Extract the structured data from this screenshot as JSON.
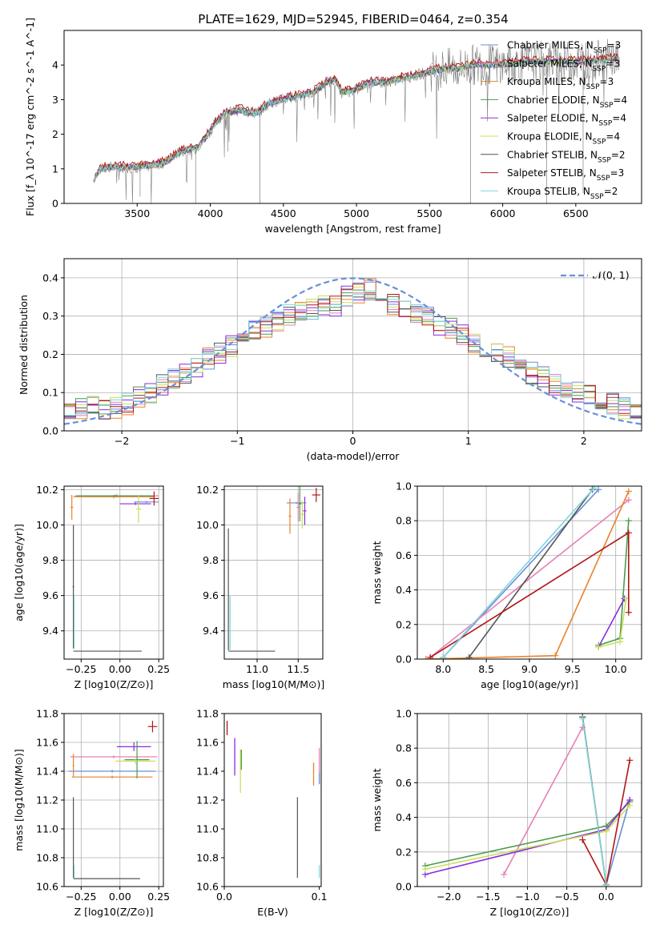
{
  "figure_title": "PLATE=1629, MJD=52945, FIBERID=0464, z=0.354",
  "colors": {
    "chabrier_miles": "#6a8fd8",
    "salpeter_miles": "#e87fb5",
    "kroupa_miles": "#e8822c",
    "chabrier_elodie": "#4d9a4d",
    "salpeter_elodie": "#8a2be2",
    "kroupa_elodie": "#c8e05a",
    "chabrier_stelib": "#555555",
    "salpeter_stelib": "#b01818",
    "kroupa_stelib": "#7fd6dc",
    "normal_curve": "#6a8fd8",
    "spectrum_grey": "#808080"
  },
  "chart_data": [
    {
      "id": "spectrum",
      "type": "line",
      "xlabel": "wavelength [Angstrom, rest frame]",
      "ylabel": "Flux [f_λ 10^-17 erg cm^-2 s^-1 A^-1]",
      "xlim": [
        3000,
        6950
      ],
      "ylim": [
        0,
        5
      ],
      "xticks": [
        "3500",
        "4000",
        "4500",
        "5000",
        "5500",
        "6000",
        "6500"
      ],
      "yticks": [
        "0",
        "1",
        "2",
        "3",
        "4"
      ],
      "grid": false,
      "legend_position": "right",
      "legend": [
        "Chabrier MILES, N_SSP=3",
        "Salpeter MILES, N_SSP=3",
        "Kroupa MILES, N_SSP=3",
        "Chabrier ELODIE, N_SSP=4",
        "Salpeter ELODIE, N_SSP=4",
        "Kroupa ELODIE, N_SSP=4",
        "Chabrier STELIB, N_SSP=2",
        "Salpeter STELIB, N_SSP=3",
        "Kroupa STELIB, N_SSP=2"
      ],
      "continuum": [
        [
          3200,
          0.7
        ],
        [
          3250,
          1.0
        ],
        [
          3300,
          1.05
        ],
        [
          3400,
          1.05
        ],
        [
          3500,
          1.05
        ],
        [
          3600,
          1.1
        ],
        [
          3700,
          1.2
        ],
        [
          3800,
          1.5
        ],
        [
          3900,
          1.6
        ],
        [
          3950,
          1.8
        ],
        [
          4000,
          2.1
        ],
        [
          4050,
          2.4
        ],
        [
          4100,
          2.6
        ],
        [
          4200,
          2.7
        ],
        [
          4300,
          2.6
        ],
        [
          4350,
          2.7
        ],
        [
          4400,
          2.9
        ],
        [
          4500,
          3.0
        ],
        [
          4600,
          3.1
        ],
        [
          4700,
          3.2
        ],
        [
          4800,
          3.5
        ],
        [
          4850,
          3.6
        ],
        [
          4900,
          3.2
        ],
        [
          5000,
          3.3
        ],
        [
          5100,
          3.5
        ],
        [
          5200,
          3.5
        ],
        [
          5300,
          3.6
        ],
        [
          5400,
          3.7
        ],
        [
          5500,
          3.8
        ],
        [
          5600,
          3.9
        ],
        [
          5700,
          3.9
        ],
        [
          5800,
          4.0
        ],
        [
          5900,
          4.0
        ],
        [
          6000,
          4.0
        ],
        [
          6200,
          4.1
        ],
        [
          6400,
          4.1
        ],
        [
          6600,
          4.1
        ],
        [
          6800,
          4.2
        ]
      ]
    },
    {
      "id": "residuals",
      "type": "line",
      "xlabel": "(data-model)/error",
      "ylabel": "Normed distribution",
      "xlim": [
        -2.5,
        2.5
      ],
      "ylim": [
        0,
        0.45
      ],
      "xticks": [
        "−2",
        "−1",
        "0",
        "1",
        "2"
      ],
      "yticks": [
        "0.0",
        "0.1",
        "0.2",
        "0.3",
        "0.4"
      ],
      "grid": true,
      "legend_position": "top-right",
      "legend": [
        "𝒩(0, 1)"
      ],
      "bin_centers": [
        -2.45,
        -2.35,
        -2.25,
        -2.15,
        -2.05,
        -1.95,
        -1.85,
        -1.75,
        -1.65,
        -1.55,
        -1.45,
        -1.35,
        -1.25,
        -1.15,
        -1.05,
        -0.95,
        -0.85,
        -0.75,
        -0.65,
        -0.55,
        -0.45,
        -0.35,
        -0.25,
        -0.15,
        -0.05,
        0.05,
        0.15,
        0.25,
        0.35,
        0.45,
        0.55,
        0.65,
        0.75,
        0.85,
        0.95,
        1.05,
        1.15,
        1.25,
        1.35,
        1.45,
        1.55,
        1.65,
        1.75,
        1.85,
        1.95,
        2.05,
        2.15,
        2.25,
        2.35,
        2.45
      ],
      "histogram_mean": [
        0.05,
        0.06,
        0.07,
        0.06,
        0.06,
        0.07,
        0.09,
        0.1,
        0.12,
        0.14,
        0.15,
        0.17,
        0.19,
        0.2,
        0.22,
        0.25,
        0.26,
        0.27,
        0.29,
        0.3,
        0.31,
        0.32,
        0.33,
        0.33,
        0.35,
        0.36,
        0.37,
        0.34,
        0.33,
        0.31,
        0.31,
        0.3,
        0.28,
        0.27,
        0.25,
        0.23,
        0.21,
        0.2,
        0.19,
        0.17,
        0.15,
        0.14,
        0.12,
        0.11,
        0.1,
        0.09,
        0.08,
        0.07,
        0.06,
        0.05
      ],
      "normal_curve": {
        "mean": 0,
        "sigma": 1
      }
    },
    {
      "id": "age_vs_Z",
      "type": "scatter",
      "xlabel": "Z [log10(Z/Z⊙)]",
      "ylabel": "age [log10(age/yr)]",
      "xlim": [
        -0.36,
        0.28
      ],
      "ylim": [
        9.24,
        10.22
      ],
      "xticks": [
        "−0.25",
        "0.00",
        "0.25"
      ],
      "yticks": [
        "9.4",
        "9.6",
        "9.8",
        "10.0",
        "10.2"
      ],
      "grid": true
    },
    {
      "id": "age_vs_mass",
      "type": "scatter",
      "xlabel": "mass [log10(M/M⊙)]",
      "ylabel": "",
      "xlim": [
        10.6,
        11.8
      ],
      "ylim": [
        9.24,
        10.22
      ],
      "xticks": [
        "11.0",
        "11.5"
      ],
      "yticks": [
        "9.4",
        "9.6",
        "9.8",
        "10.0",
        "10.2"
      ],
      "grid": true
    },
    {
      "id": "weight_vs_age",
      "type": "line",
      "xlabel": "age [log10(age/yr)]",
      "ylabel": "mass weight",
      "xlim": [
        7.7,
        10.3
      ],
      "ylim": [
        0,
        1
      ],
      "xticks": [
        "8.0",
        "8.5",
        "9.0",
        "9.5",
        "10.0"
      ],
      "yticks": [
        "0.0",
        "0.2",
        "0.4",
        "0.6",
        "0.8",
        "1.0"
      ],
      "grid": true,
      "series": [
        {
          "x": [
            8.0,
            9.8
          ],
          "y": [
            0.01,
            0.98
          ]
        },
        {
          "x": [
            7.85,
            10.15
          ],
          "y": [
            0.01,
            0.92
          ]
        },
        {
          "x": [
            10.15,
            9.3,
            7.8
          ],
          "y": [
            0.97,
            0.02,
            0.0
          ]
        },
        {
          "x": [
            9.8,
            10.05,
            10.15
          ],
          "y": [
            0.08,
            0.12,
            0.8
          ]
        },
        {
          "x": [
            9.8,
            10.1
          ],
          "y": [
            0.07,
            0.35
          ]
        },
        {
          "x": [
            9.8,
            10.05,
            10.12
          ],
          "y": [
            0.07,
            0.1,
            0.35
          ]
        },
        {
          "x": [
            8.3,
            9.73
          ],
          "y": [
            0.01,
            0.98
          ]
        },
        {
          "x": [
            7.85,
            10.15,
            10.15
          ],
          "y": [
            0.01,
            0.73,
            0.27
          ]
        },
        {
          "x": [
            8.0,
            9.75
          ],
          "y": [
            0.01,
            0.99
          ]
        }
      ]
    },
    {
      "id": "mass_vs_Z",
      "type": "scatter",
      "xlabel": "Z [log10(Z/Z⊙)]",
      "ylabel": "mass [log10(M/M⊙)]",
      "xlim": [
        -0.36,
        0.28
      ],
      "ylim": [
        10.6,
        11.8
      ],
      "xticks": [
        "−0.25",
        "0.00",
        "0.25"
      ],
      "yticks": [
        "10.6",
        "10.8",
        "11.0",
        "11.2",
        "11.4",
        "11.6",
        "11.8"
      ],
      "grid": true
    },
    {
      "id": "mass_vs_ebv",
      "type": "scatter",
      "xlabel": "E(B-V)",
      "ylabel": "",
      "xlim": [
        0,
        0.102
      ],
      "ylim": [
        10.6,
        11.8
      ],
      "xticks": [
        "0.0",
        "0.1"
      ],
      "yticks": [
        "10.6",
        "10.8",
        "11.0",
        "11.2",
        "11.4",
        "11.6",
        "11.8"
      ],
      "grid": false
    },
    {
      "id": "weight_vs_Z",
      "type": "line",
      "xlabel": "Z [log10(Z/Z⊙)]",
      "ylabel": "mass weight",
      "xlim": [
        -2.4,
        0.45
      ],
      "ylim": [
        0,
        1
      ],
      "xticks": [
        "−2.0",
        "−1.5",
        "−1.0",
        "−0.5",
        "0.0"
      ],
      "yticks": [
        "0.0",
        "0.2",
        "0.4",
        "0.6",
        "0.8",
        "1.0"
      ],
      "grid": true,
      "series": [
        {
          "x": [
            -0.3,
            0.0,
            0.3
          ],
          "y": [
            0.98,
            0.01,
            0.5
          ]
        },
        {
          "x": [
            -1.3,
            -0.3
          ],
          "y": [
            0.07,
            0.92
          ]
        },
        {
          "x": [
            -0.3,
            0.0
          ],
          "y": [
            0.98,
            0.01
          ]
        },
        {
          "x": [
            -2.3,
            0.0,
            0.3
          ],
          "y": [
            0.12,
            0.35,
            0.49
          ]
        },
        {
          "x": [
            -2.3,
            0.0,
            0.3
          ],
          "y": [
            0.07,
            0.33,
            0.5
          ]
        },
        {
          "x": [
            -2.3,
            0.0,
            0.3
          ],
          "y": [
            0.1,
            0.32,
            0.47
          ]
        },
        {
          "x": [
            -0.3,
            0.0
          ],
          "y": [
            0.98,
            0.01
          ]
        },
        {
          "x": [
            -0.3,
            0.0,
            0.3
          ],
          "y": [
            0.27,
            0.01,
            0.73
          ]
        },
        {
          "x": [
            -0.3,
            0.0
          ],
          "y": [
            0.97,
            0.01
          ]
        }
      ]
    }
  ]
}
